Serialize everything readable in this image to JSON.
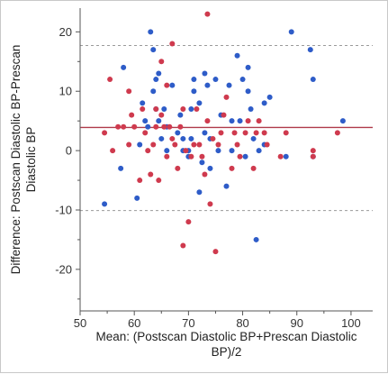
{
  "chart_data": {
    "type": "scatter",
    "title": "",
    "xlabel_lines": [
      "Mean: (Postscan Diastolic BP+Prescan Diastolic",
      "BP)/2"
    ],
    "ylabel_lines": [
      "Difference: Postscan Diastolic BP-Prescan",
      "Diastolic BP"
    ],
    "xlim": [
      50,
      104
    ],
    "ylim": [
      -27,
      24
    ],
    "xticks": [
      50,
      60,
      70,
      80,
      90,
      100
    ],
    "yticks": [
      -20,
      -10,
      0,
      10,
      20
    ],
    "grid": false,
    "legend": "none",
    "reference_lines": [
      {
        "name": "mean_difference",
        "y": 3.9,
        "style": "solid",
        "color": "#b03a4a"
      },
      {
        "name": "upper_limit",
        "y": 17.7,
        "style": "dashed",
        "color": "#9a9a9a"
      },
      {
        "name": "lower_limit",
        "y": -10.1,
        "style": "dashed",
        "color": "#9a9a9a"
      }
    ],
    "series": [
      {
        "color": "#2e5cc8",
        "points": [
          [
            54.5,
            -9
          ],
          [
            57.5,
            -3
          ],
          [
            58,
            14
          ],
          [
            60.5,
            -8
          ],
          [
            61,
            1
          ],
          [
            61.5,
            8
          ],
          [
            62,
            5
          ],
          [
            62.5,
            4
          ],
          [
            63,
            20
          ],
          [
            63.5,
            17
          ],
          [
            63.5,
            10
          ],
          [
            64,
            12
          ],
          [
            64,
            7
          ],
          [
            64.5,
            13
          ],
          [
            64.5,
            5
          ],
          [
            65,
            2
          ],
          [
            65.5,
            7
          ],
          [
            66,
            0
          ],
          [
            66,
            4
          ],
          [
            67,
            11
          ],
          [
            68,
            3
          ],
          [
            68.5,
            6
          ],
          [
            69,
            2
          ],
          [
            69,
            0
          ],
          [
            70,
            0
          ],
          [
            70,
            -1
          ],
          [
            70.5,
            2
          ],
          [
            70.5,
            7
          ],
          [
            71,
            10
          ],
          [
            71,
            12
          ],
          [
            72,
            8
          ],
          [
            72,
            -7
          ],
          [
            72.5,
            -2
          ],
          [
            73,
            13
          ],
          [
            73,
            3
          ],
          [
            73.5,
            11
          ],
          [
            74,
            -3
          ],
          [
            74,
            2
          ],
          [
            75,
            12
          ],
          [
            75.5,
            0
          ],
          [
            76,
            6
          ],
          [
            77,
            -6
          ],
          [
            77.5,
            11
          ],
          [
            78,
            0
          ],
          [
            78,
            5
          ],
          [
            79,
            16
          ],
          [
            79.5,
            5
          ],
          [
            80,
            12
          ],
          [
            80.5,
            -1
          ],
          [
            81,
            14
          ],
          [
            81,
            10
          ],
          [
            81.5,
            7
          ],
          [
            82,
            2
          ],
          [
            82.5,
            -15
          ],
          [
            83,
            0
          ],
          [
            84,
            1
          ],
          [
            84,
            8
          ],
          [
            85,
            9
          ],
          [
            88,
            -1
          ],
          [
            89,
            20
          ],
          [
            92.5,
            17
          ],
          [
            93,
            12
          ],
          [
            93,
            -1
          ],
          [
            98.5,
            5
          ]
        ]
      },
      {
        "color": "#cf3a4e",
        "points": [
          [
            54.5,
            3
          ],
          [
            55.5,
            12
          ],
          [
            56,
            0
          ],
          [
            57,
            4
          ],
          [
            58,
            4
          ],
          [
            59,
            10
          ],
          [
            59,
            1
          ],
          [
            59.5,
            6
          ],
          [
            60,
            4
          ],
          [
            61,
            -5
          ],
          [
            61.5,
            7
          ],
          [
            62,
            3
          ],
          [
            62.5,
            0
          ],
          [
            63,
            -4
          ],
          [
            63.5,
            1
          ],
          [
            64,
            7
          ],
          [
            64,
            4
          ],
          [
            64.5,
            -5
          ],
          [
            65,
            15
          ],
          [
            65,
            6
          ],
          [
            65.5,
            4
          ],
          [
            66,
            -1
          ],
          [
            66,
            11
          ],
          [
            66.5,
            4
          ],
          [
            67,
            18
          ],
          [
            67,
            2
          ],
          [
            67.5,
            1
          ],
          [
            68,
            -3
          ],
          [
            68.5,
            4
          ],
          [
            69,
            7
          ],
          [
            69,
            -16
          ],
          [
            69.5,
            0
          ],
          [
            70,
            -12
          ],
          [
            70.5,
            -1
          ],
          [
            71,
            1
          ],
          [
            71.5,
            7
          ],
          [
            72,
            1
          ],
          [
            72.5,
            -1
          ],
          [
            73,
            -4
          ],
          [
            73.5,
            5
          ],
          [
            73.5,
            23
          ],
          [
            74,
            -9
          ],
          [
            74.5,
            2
          ],
          [
            75,
            -17
          ],
          [
            75.5,
            1
          ],
          [
            76,
            3
          ],
          [
            76.5,
            6
          ],
          [
            77,
            9
          ],
          [
            78,
            -3
          ],
          [
            78.5,
            3
          ],
          [
            79,
            1
          ],
          [
            79.5,
            -1
          ],
          [
            80.5,
            3
          ],
          [
            81,
            5
          ],
          [
            82,
            -3
          ],
          [
            82.5,
            3
          ],
          [
            83,
            5
          ],
          [
            84,
            3
          ],
          [
            84.5,
            1
          ],
          [
            87,
            -1
          ],
          [
            88,
            3
          ],
          [
            93,
            -1
          ],
          [
            93,
            0
          ],
          [
            97.5,
            3
          ]
        ]
      }
    ]
  }
}
